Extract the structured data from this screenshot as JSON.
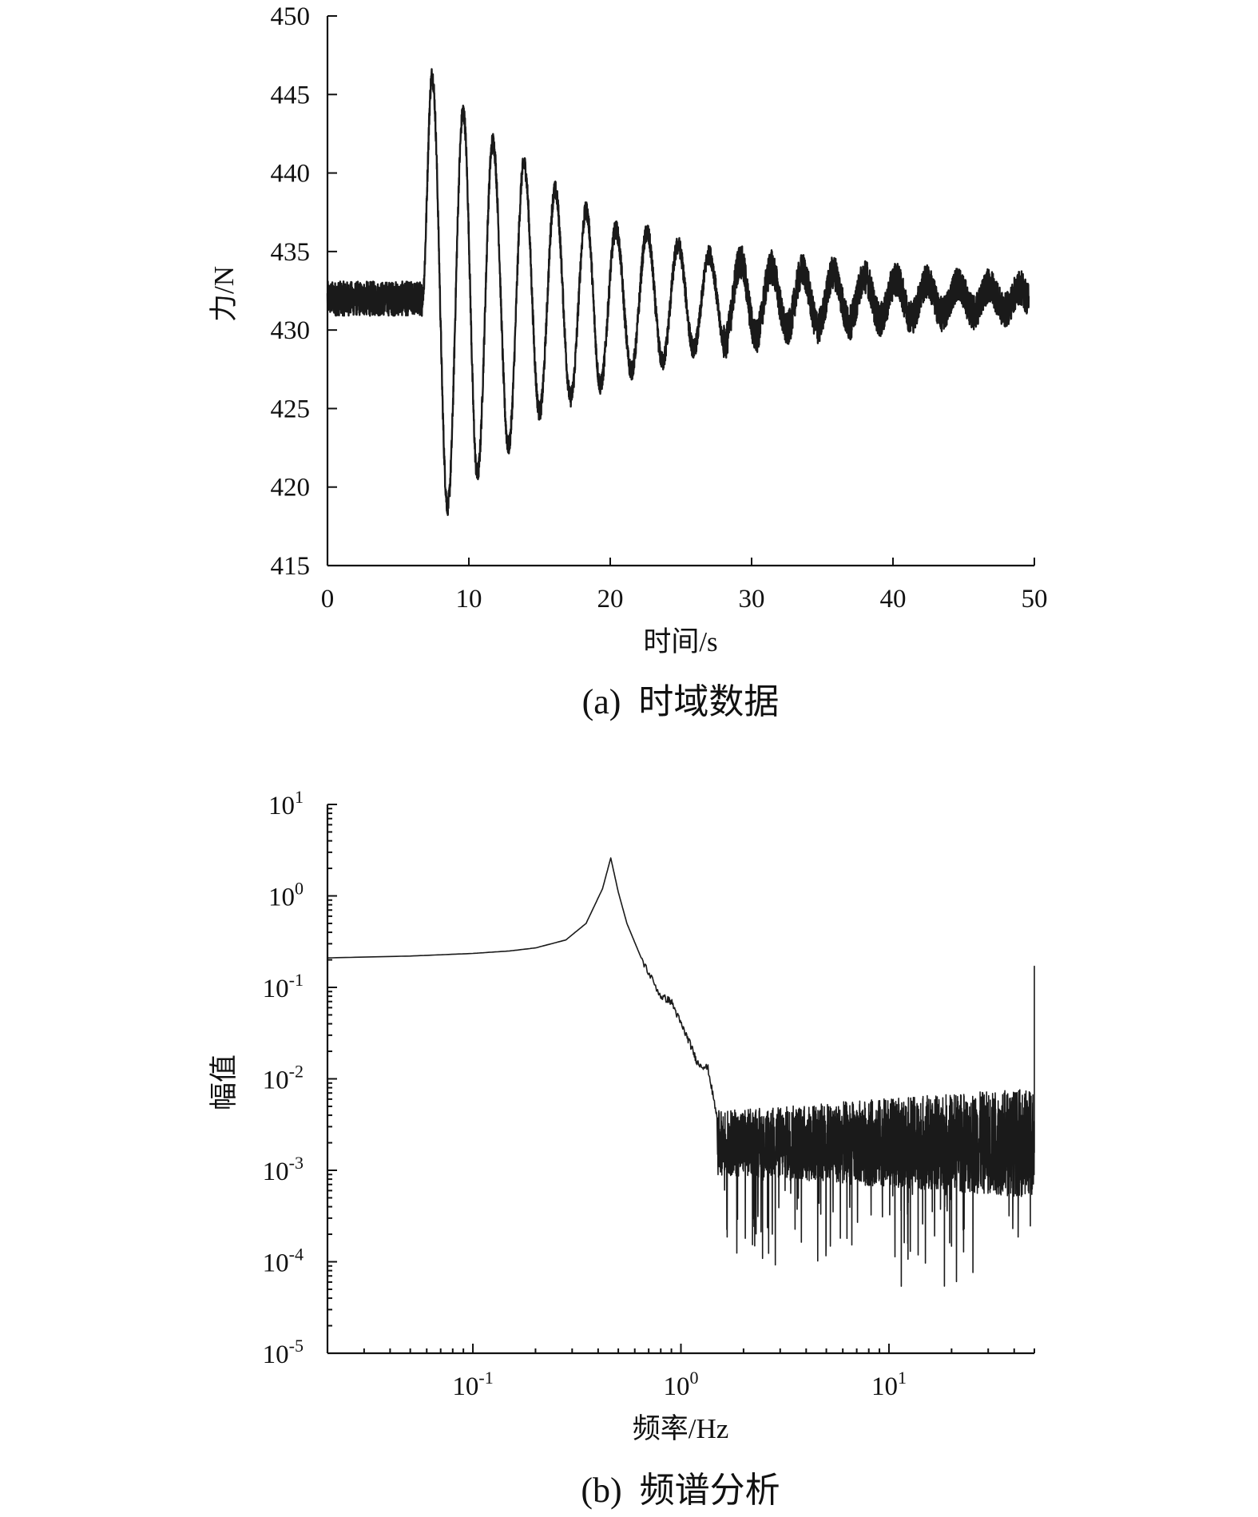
{
  "chart_data": [
    {
      "type": "line",
      "caption": "(a)  时域数据",
      "xlabel": "时间/s",
      "ylabel": "力/N",
      "xlim": [
        0,
        50
      ],
      "ylim": [
        415,
        450
      ],
      "x_ticks": [
        0,
        10,
        20,
        30,
        40,
        50
      ],
      "y_ticks": [
        415,
        420,
        425,
        430,
        435,
        440,
        445,
        450
      ],
      "grid": false,
      "series": [
        {
          "baseline": 432,
          "noise_band": 2.2,
          "impact_time": 6.7,
          "peaks": [
            {
              "x": 7.4,
              "y": 446.2
            },
            {
              "x": 8.5,
              "y": 418.8
            },
            {
              "x": 9.6,
              "y": 443.9
            },
            {
              "x": 10.6,
              "y": 420.8
            },
            {
              "x": 11.7,
              "y": 442.0
            },
            {
              "x": 12.8,
              "y": 422.6
            },
            {
              "x": 13.9,
              "y": 440.6
            },
            {
              "x": 15.0,
              "y": 424.8
            },
            {
              "x": 16.1,
              "y": 438.9
            },
            {
              "x": 17.2,
              "y": 425.7
            },
            {
              "x": 18.3,
              "y": 437.6
            },
            {
              "x": 19.3,
              "y": 426.5
            },
            {
              "x": 20.4,
              "y": 436.4
            },
            {
              "x": 21.5,
              "y": 427.4
            },
            {
              "x": 22.6,
              "y": 436.2
            },
            {
              "x": 23.7,
              "y": 428.0
            },
            {
              "x": 24.8,
              "y": 435.4
            },
            {
              "x": 25.9,
              "y": 428.8
            },
            {
              "x": 27.0,
              "y": 434.8
            },
            {
              "x": 28.1,
              "y": 429.2
            },
            {
              "x": 29.2,
              "y": 434.4
            },
            {
              "x": 30.3,
              "y": 429.6
            },
            {
              "x": 31.4,
              "y": 434.0
            },
            {
              "x": 32.5,
              "y": 430.0
            },
            {
              "x": 33.6,
              "y": 433.8
            },
            {
              "x": 34.7,
              "y": 430.2
            }
          ],
          "end_time": 49.6
        }
      ]
    },
    {
      "type": "line",
      "caption": "(b)  频谱分析",
      "xlabel": "频率/Hz",
      "ylabel": "幅值",
      "x_scale": "log",
      "y_scale": "log",
      "xlim": [
        0.02,
        50
      ],
      "ylim": [
        1e-05,
        10
      ],
      "x_ticks": [
        {
          "base": "10",
          "exp": "-1",
          "value": 0.1
        },
        {
          "base": "10",
          "exp": "0",
          "value": 1
        },
        {
          "base": "10",
          "exp": "1",
          "value": 10
        }
      ],
      "y_ticks": [
        {
          "base": "10",
          "exp": "1",
          "value": 10
        },
        {
          "base": "10",
          "exp": "0",
          "value": 1
        },
        {
          "base": "10",
          "exp": "-1",
          "value": 0.1
        },
        {
          "base": "10",
          "exp": "-2",
          "value": 0.01
        },
        {
          "base": "10",
          "exp": "-3",
          "value": 0.001
        },
        {
          "base": "10",
          "exp": "-4",
          "value": 0.0001
        },
        {
          "base": "10",
          "exp": "-5",
          "value": 1e-05
        }
      ],
      "grid": false,
      "series": [
        {
          "points": [
            {
              "x": 0.02,
              "y": 0.21
            },
            {
              "x": 0.05,
              "y": 0.22
            },
            {
              "x": 0.1,
              "y": 0.235
            },
            {
              "x": 0.15,
              "y": 0.25
            },
            {
              "x": 0.2,
              "y": 0.27
            },
            {
              "x": 0.28,
              "y": 0.33
            },
            {
              "x": 0.35,
              "y": 0.5
            },
            {
              "x": 0.42,
              "y": 1.2
            },
            {
              "x": 0.46,
              "y": 2.6
            },
            {
              "x": 0.5,
              "y": 1.1
            },
            {
              "x": 0.55,
              "y": 0.5
            },
            {
              "x": 0.65,
              "y": 0.2
            },
            {
              "x": 0.8,
              "y": 0.08
            },
            {
              "x": 0.9,
              "y": 0.07
            },
            {
              "x": 1.0,
              "y": 0.04
            },
            {
              "x": 1.1,
              "y": 0.025
            },
            {
              "x": 1.2,
              "y": 0.015
            },
            {
              "x": 1.35,
              "y": 0.013
            },
            {
              "x": 1.5,
              "y": 0.0035
            }
          ],
          "noise_floor": 0.002,
          "noise_from": 1.5,
          "noise_to": 50,
          "end_spike": 0.17
        }
      ]
    }
  ]
}
